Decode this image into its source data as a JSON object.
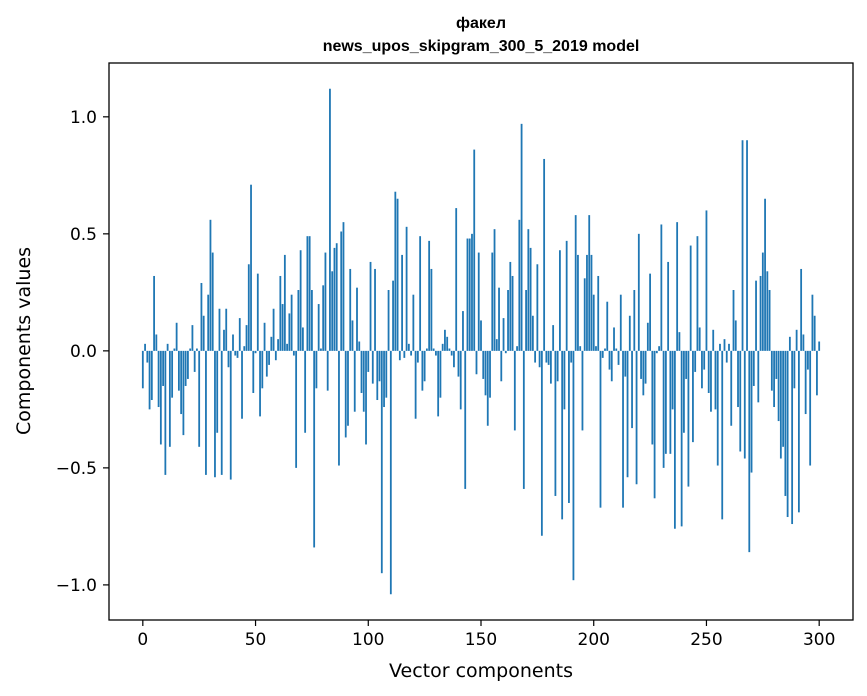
{
  "chart_data": {
    "type": "bar",
    "title": "факел",
    "subtitle": "news_upos_skipgram_300_5_2019 model",
    "xlabel": "Vector components",
    "ylabel": "Components values",
    "xlim": [
      -15,
      315
    ],
    "ylim": [
      -1.15,
      1.23
    ],
    "xticks": [
      0,
      50,
      100,
      150,
      200,
      250,
      300
    ],
    "yticks": [
      -1.0,
      -0.5,
      0.0,
      0.5,
      1.0
    ],
    "ytick_labels": [
      "−1.0",
      "−0.5",
      "0.0",
      "0.5",
      "1.0"
    ],
    "grid": false,
    "bar_color": "#1f77b4",
    "x_start": 0,
    "values": [
      -0.16,
      0.03,
      -0.05,
      -0.25,
      -0.21,
      0.32,
      0.07,
      -0.24,
      -0.4,
      -0.15,
      -0.53,
      0.03,
      -0.41,
      -0.2,
      0.01,
      0.12,
      -0.17,
      -0.27,
      -0.36,
      -0.15,
      -0.12,
      0.01,
      0.11,
      -0.09,
      0.01,
      -0.41,
      0.29,
      0.15,
      -0.53,
      0.24,
      0.56,
      0.42,
      -0.54,
      -0.35,
      0.18,
      -0.53,
      0.09,
      0.18,
      -0.07,
      -0.55,
      0.07,
      -0.02,
      -0.03,
      0.14,
      -0.29,
      0.02,
      0.11,
      0.37,
      0.71,
      -0.18,
      -0.01,
      0.33,
      -0.28,
      -0.16,
      0.12,
      -0.11,
      -0.06,
      0.06,
      0.18,
      -0.04,
      0.05,
      0.32,
      0.2,
      0.41,
      0.03,
      0.16,
      0.24,
      -0.02,
      -0.5,
      0.26,
      0.43,
      0.1,
      -0.35,
      0.49,
      0.49,
      0.26,
      -0.84,
      -0.16,
      0.2,
      0.01,
      0.28,
      0.42,
      -0.17,
      1.12,
      0.34,
      0.44,
      0.46,
      -0.49,
      0.51,
      0.55,
      -0.37,
      -0.32,
      0.35,
      0.13,
      -0.26,
      0.27,
      0.04,
      -0.18,
      -0.26,
      -0.4,
      -0.09,
      0.38,
      -0.14,
      0.35,
      -0.21,
      -0.13,
      -0.95,
      -0.24,
      -0.2,
      0.26,
      -1.04,
      0.3,
      0.68,
      0.65,
      -0.04,
      0.41,
      -0.03,
      0.53,
      0.03,
      -0.02,
      0.24,
      -0.29,
      -0.05,
      0.49,
      -0.17,
      -0.13,
      0.01,
      0.47,
      0.35,
      0.01,
      -0.02,
      -0.28,
      -0.2,
      0.03,
      0.09,
      0.06,
      0.01,
      -0.02,
      -0.07,
      0.61,
      -0.11,
      -0.25,
      0.17,
      -0.59,
      0.48,
      0.48,
      0.5,
      0.86,
      -0.1,
      0.42,
      0.13,
      -0.12,
      -0.19,
      -0.32,
      -0.2,
      0.42,
      0.52,
      0.05,
      0.27,
      -0.13,
      0.14,
      -0.01,
      0.26,
      0.38,
      0.32,
      -0.34,
      0.02,
      0.56,
      0.97,
      -0.59,
      0.26,
      0.52,
      0.44,
      0.15,
      -0.05,
      0.37,
      -0.07,
      -0.79,
      0.82,
      -0.05,
      -0.06,
      -0.14,
      0.11,
      -0.62,
      -0.13,
      0.43,
      -0.72,
      -0.25,
      0.47,
      -0.65,
      -0.05,
      -0.98,
      0.58,
      0.41,
      0.02,
      -0.34,
      0.31,
      0.41,
      0.58,
      0.41,
      0.24,
      0.02,
      0.32,
      -0.67,
      -0.03,
      0.01,
      0.21,
      -0.08,
      -0.13,
      0.1,
      0.01,
      -0.06,
      0.24,
      -0.67,
      -0.11,
      -0.54,
      0.15,
      -0.33,
      0.26,
      -0.57,
      0.5,
      -0.12,
      -0.19,
      -0.14,
      0.12,
      0.33,
      -0.4,
      -0.63,
      -0.01,
      0.02,
      0.54,
      -0.5,
      -0.44,
      0.38,
      -0.44,
      -0.25,
      -0.76,
      0.55,
      0.08,
      -0.75,
      -0.35,
      -0.12,
      -0.58,
      0.45,
      -0.39,
      -0.09,
      0.49,
      0.1,
      -0.16,
      -0.08,
      0.6,
      -0.18,
      -0.26,
      0.09,
      -0.25,
      -0.49,
      0.03,
      -0.72,
      0.05,
      -0.05,
      0.03,
      -0.32,
      0.26,
      0.13,
      -0.24,
      -0.43,
      0.9,
      -0.46,
      0.9,
      -0.86,
      -0.52,
      -0.15,
      0.3,
      -0.22,
      0.32,
      0.42,
      0.65,
      0.34,
      0.26,
      -0.17,
      -0.24,
      -0.12,
      -0.3,
      -0.46,
      -0.41,
      -0.62,
      -0.71,
      0.06,
      -0.74,
      -0.16,
      0.09,
      -0.69,
      0.35,
      0.07,
      -0.27,
      -0.08,
      -0.49,
      0.24,
      0.15,
      -0.19,
      0.04
    ],
    "plot_area": "single axes with black frame"
  }
}
